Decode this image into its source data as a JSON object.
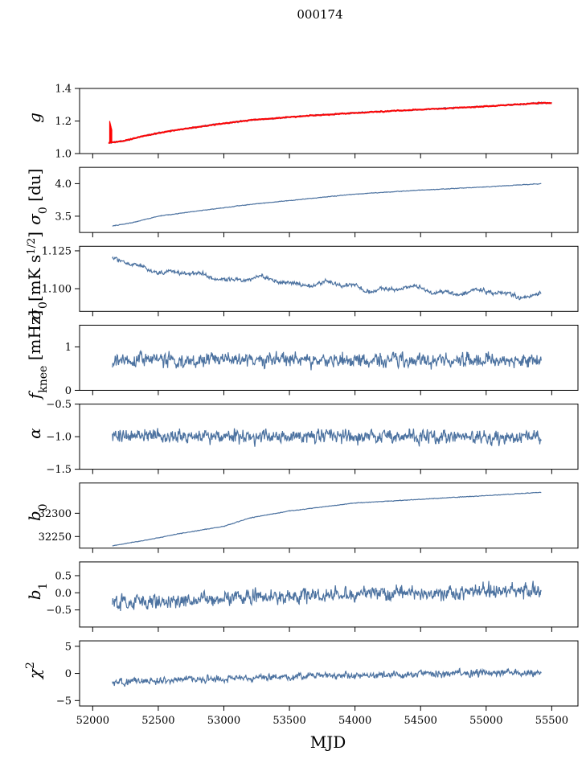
{
  "figure": {
    "title": "000174",
    "xlabel": "MJD",
    "xlim": [
      51900,
      55700
    ],
    "xticks": [
      52000,
      52500,
      53000,
      53500,
      54000,
      54500,
      55000,
      55500
    ],
    "xtick_labels": [
      "52000",
      "52500",
      "53000",
      "53500",
      "54000",
      "54500",
      "55000",
      "55500"
    ]
  },
  "colors": {
    "series": "#4c72a0",
    "fit": "#ff0000",
    "axis": "#000000"
  },
  "chart_data": [
    {
      "type": "line",
      "ylabel": "g",
      "ylim": [
        1.0,
        1.4
      ],
      "yticks": [
        1.0,
        1.2,
        1.4
      ],
      "ytick_labels": [
        "1.0",
        "1.2",
        "1.4"
      ],
      "x_range": [
        52120,
        55500
      ],
      "trend": [
        [
          52120,
          1.065
        ],
        [
          52250,
          1.08
        ],
        [
          52400,
          1.11
        ],
        [
          52600,
          1.14
        ],
        [
          52900,
          1.175
        ],
        [
          53200,
          1.205
        ],
        [
          53600,
          1.23
        ],
        [
          54000,
          1.25
        ],
        [
          54500,
          1.27
        ],
        [
          55000,
          1.29
        ],
        [
          55400,
          1.31
        ],
        [
          55500,
          1.31
        ]
      ],
      "noise": 0.004,
      "fit_series": {
        "name": "fit",
        "color": "#ff0000",
        "spike": {
          "x": 52130,
          "ymin": 1.065,
          "ymax": 1.2
        }
      }
    },
    {
      "type": "line",
      "ylabel": "σ0 [du]",
      "ylim": [
        3.25,
        4.25
      ],
      "yticks": [
        3.5,
        4.0
      ],
      "ytick_labels": [
        "3.5",
        "4.0"
      ],
      "x_range": [
        52150,
        55420
      ],
      "trend": [
        [
          52150,
          3.35
        ],
        [
          52300,
          3.4
        ],
        [
          52500,
          3.5
        ],
        [
          52800,
          3.58
        ],
        [
          53200,
          3.68
        ],
        [
          53600,
          3.76
        ],
        [
          54000,
          3.84
        ],
        [
          54500,
          3.9
        ],
        [
          55000,
          3.95
        ],
        [
          55420,
          4.0
        ]
      ],
      "noise": 0.004
    },
    {
      "type": "line",
      "ylabel": "σ0[mK s^1/2]",
      "ylim": [
        1.085,
        1.128
      ],
      "yticks": [
        1.1,
        1.125
      ],
      "ytick_labels": [
        "1.100",
        "1.125"
      ],
      "x_range": [
        52150,
        55420
      ],
      "trend": [
        [
          52150,
          1.118
        ],
        [
          52400,
          1.115
        ],
        [
          52600,
          1.11
        ],
        [
          52900,
          1.108
        ],
        [
          53200,
          1.106
        ],
        [
          53600,
          1.104
        ],
        [
          54000,
          1.101
        ],
        [
          54500,
          1.099
        ],
        [
          55000,
          1.097
        ],
        [
          55420,
          1.096
        ]
      ],
      "noise": 0.0012,
      "wiggle": 0.002
    },
    {
      "type": "line",
      "ylabel": "f_knee [mHz]",
      "ylim": [
        0,
        1.5
      ],
      "yticks": [
        0,
        1
      ],
      "ytick_labels": [
        "0",
        "1"
      ],
      "x_range": [
        52150,
        55420
      ],
      "trend": [
        [
          52150,
          0.7
        ],
        [
          55420,
          0.7
        ]
      ],
      "noise": 0.15
    },
    {
      "type": "line",
      "ylabel": "α",
      "ylim": [
        -1.5,
        -0.5
      ],
      "yticks": [
        -1.5,
        -1.0,
        -0.5
      ],
      "ytick_labels": [
        "−1.5",
        "−1.0",
        "−0.5"
      ],
      "x_range": [
        52150,
        55420
      ],
      "trend": [
        [
          52150,
          -1.0
        ],
        [
          55420,
          -1.0
        ]
      ],
      "noise": 0.1
    },
    {
      "type": "line",
      "ylabel": "b0",
      "ylim": [
        32225,
        32365
      ],
      "yticks": [
        32250,
        32300
      ],
      "ytick_labels": [
        "32250",
        "32300"
      ],
      "x_range": [
        52150,
        55420
      ],
      "trend": [
        [
          52150,
          32230
        ],
        [
          52400,
          32242
        ],
        [
          52700,
          32258
        ],
        [
          53000,
          32272
        ],
        [
          53200,
          32290
        ],
        [
          53500,
          32305
        ],
        [
          54000,
          32322
        ],
        [
          54500,
          32330
        ],
        [
          55000,
          32338
        ],
        [
          55420,
          32345
        ]
      ],
      "noise": 0.6
    },
    {
      "type": "line",
      "ylabel": "b1",
      "ylim": [
        -1.0,
        0.9
      ],
      "yticks": [
        -0.5,
        0.0,
        0.5
      ],
      "ytick_labels": [
        "−0.5",
        "0.0",
        "0.5"
      ],
      "x_range": [
        52150,
        55420
      ],
      "trend": [
        [
          52150,
          -0.35
        ],
        [
          53000,
          -0.15
        ],
        [
          54000,
          -0.05
        ],
        [
          55420,
          0.05
        ]
      ],
      "noise": 0.2
    },
    {
      "type": "line",
      "ylabel": "χ²",
      "ylim": [
        -6,
        6
      ],
      "yticks": [
        -5,
        0,
        5
      ],
      "ytick_labels": [
        "−5",
        "0",
        "5"
      ],
      "x_range": [
        52150,
        55420
      ],
      "trend": [
        [
          52150,
          -1.6
        ],
        [
          53000,
          -1.0
        ],
        [
          54000,
          -0.3
        ],
        [
          55420,
          0.2
        ]
      ],
      "noise": 0.6
    }
  ]
}
